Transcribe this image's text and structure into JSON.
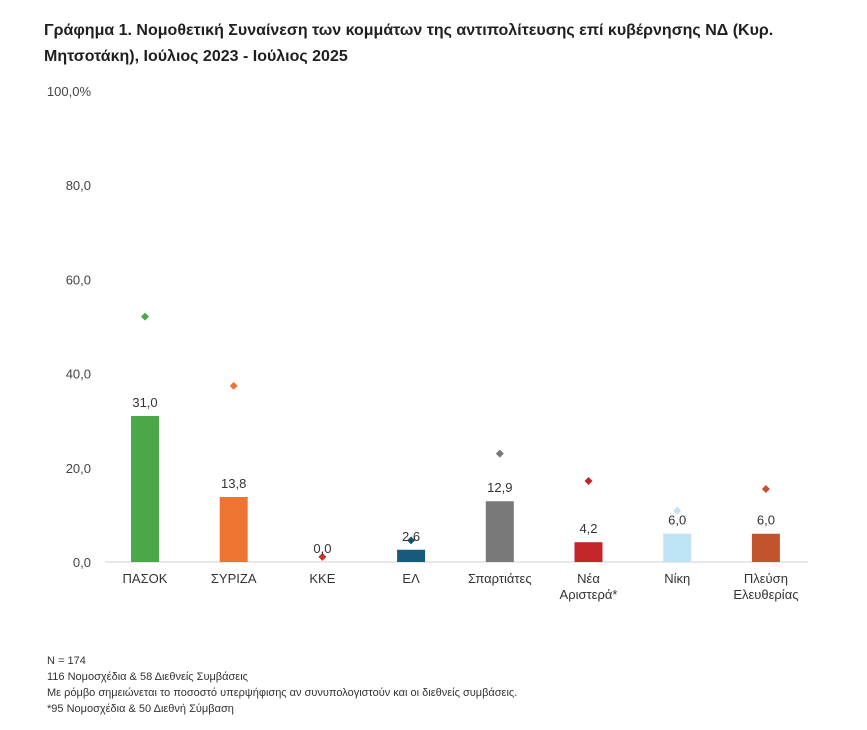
{
  "title": "Γράφημα 1. Νομοθετική Συναίνεση των κομμάτων της αντιπολίτευσης επί  κυβέρνησης ΝΔ (Κυρ. Μητσοτάκη), Ιούλιος 2023 - Ιούλιος 2025",
  "notes": [
    "N = 174",
    "116 Νομοσχέδια & 58 Διεθνείς Συμβάσεις",
    "Με ρόμβο σημειώνεται το ποσοστό υπερψήφισης αν συνυπολογιστούν και οι διεθνείς συμβάσεις.",
    "*95 Νομοσχέδια & 50 Διεθνή Σύμβαση"
  ],
  "chart_data": {
    "type": "bar",
    "title": "Γράφημα 1. Νομοθετική Συναίνεση των κομμάτων της αντιπολίτευσης επί  κυβέρνησης ΝΔ (Κυρ. Μητσοτάκη), Ιούλιος 2023 - Ιούλιος 2025",
    "ylim": [
      0,
      100
    ],
    "y_ticks": [
      "0,0",
      "20,0",
      "40,0",
      "60,0",
      "80,0",
      "100,0%"
    ],
    "y_tick_values": [
      0,
      20,
      40,
      60,
      80,
      100
    ],
    "grid": false,
    "categories": [
      [
        "ΠΑΣΟΚ"
      ],
      [
        "ΣΥΡΙΖΑ"
      ],
      [
        "ΚΚΕ"
      ],
      [
        "ΕΛ"
      ],
      [
        "Σπαρτιάτες"
      ],
      [
        "Νέα",
        "Αριστερά*"
      ],
      [
        "Νίκη"
      ],
      [
        "Πλεύση",
        "Ελευθερίας"
      ]
    ],
    "values": [
      31.0,
      13.8,
      0.0,
      2.6,
      12.9,
      4.2,
      6.0,
      6.0
    ],
    "value_labels": [
      "31,0",
      "13,8",
      "0,0",
      "2,6",
      "12,9",
      "4,2",
      "6,0",
      "6,0"
    ],
    "diamond_values": [
      52.1,
      37.4,
      1.1,
      4.6,
      23.0,
      17.2,
      10.9,
      15.5
    ],
    "colors": [
      "#4aa84a",
      "#ee7433",
      "#c8332b",
      "#165a7d",
      "#797979",
      "#c42528",
      "#bfe4f5",
      "#c1532d"
    ]
  }
}
